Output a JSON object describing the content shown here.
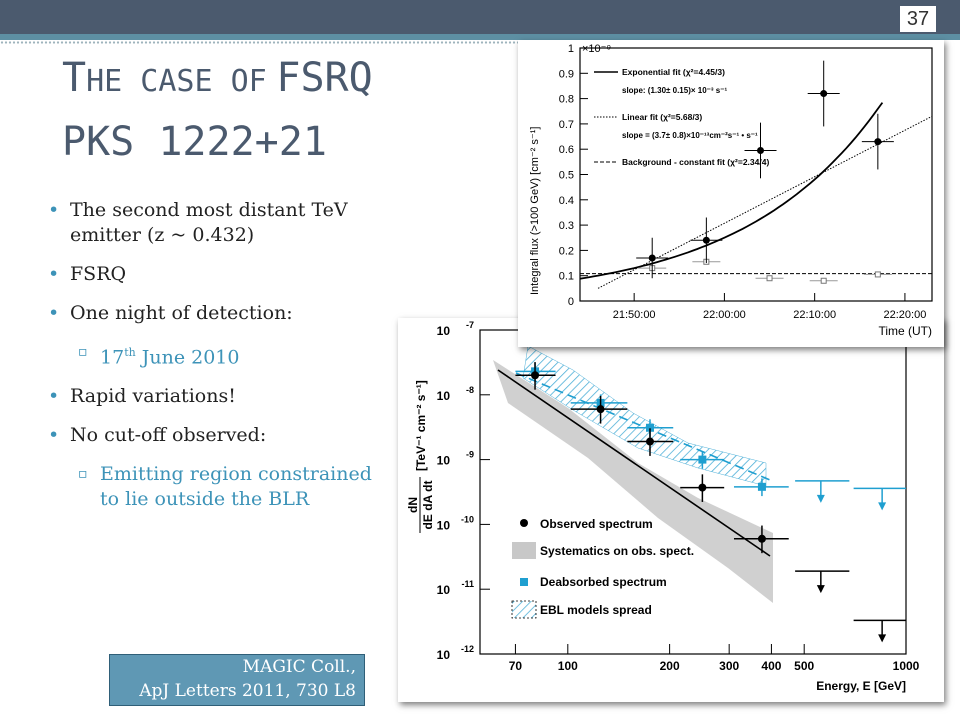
{
  "slide": {
    "page_number": "37",
    "title_line1_cap1": "T",
    "title_line1_rest1": "HE CASE OF",
    "title_line1_rest2": "FSRQ",
    "title_line2": "PKS 1222+21",
    "bullet1": "The second most distant TeV emitter (z ~ 0.432)",
    "bullet2": "FSRQ",
    "bullet3": "One night of detection:",
    "sub1_prefix": "17",
    "sub1_sup": "th",
    "sub1_rest": " June 2010",
    "bullet4": "Rapid variations!",
    "bullet5": "No cut-off observed:",
    "sub2": "Emitting region constrained to lie outside the BLR",
    "ref_line1": "MAGIC Coll.,",
    "ref_line2": "ApJ Letters 2011, 730 L8"
  },
  "colors": {
    "header": "#4b5a6e",
    "accent": "#3d93b8",
    "deabsorbed": "#1f9fd0",
    "band": "#c8c8c8"
  },
  "chart_data": [
    {
      "type": "scatter",
      "xlabel": "Time (UT)",
      "ylabel": "Integral flux (>100 GeV) [cm⁻² s⁻¹]",
      "y_multiplier": "×10⁻⁹",
      "x_ticks": [
        "21:50:00",
        "22:00:00",
        "22:10:00",
        "22:20:00"
      ],
      "y_ticks": [
        "0",
        "0.1",
        "0.2",
        "0.3",
        "0.4",
        "0.5",
        "0.6",
        "0.7",
        "0.8",
        "0.9",
        "1"
      ],
      "ylim": [
        0,
        1.0
      ],
      "legend": [
        {
          "label": "Exponential fit (χ²=4.45/3)",
          "style": "solid"
        },
        {
          "label": "slope: (1.30± 0.15)× 10⁻³ s⁻¹",
          "style": "none"
        },
        {
          "label": "Linear fit (χ²=5.68/3)",
          "style": "dotted"
        },
        {
          "label": "slope = (3.7± 0.8)×10⁻¹³cm⁻²s⁻¹ • s⁻¹",
          "style": "none"
        },
        {
          "label": "Background - constant fit (χ²=2.34/4)",
          "style": "dashed"
        }
      ],
      "series": [
        {
          "points": [
            {
              "x": "21:52",
              "y": 0.17,
              "yerr": 0.08
            },
            {
              "x": "21:58",
              "y": 0.24,
              "yerr": 0.09
            },
            {
              "x": "22:04",
              "y": 0.595,
              "yerr": 0.11
            },
            {
              "x": "22:11",
              "y": 0.82,
              "yerr": 0.13
            },
            {
              "x": "22:17",
              "y": 0.63,
              "yerr": 0.11
            }
          ]
        },
        {
          "points": [
            {
              "x": "21:52",
              "y": 0.13
            },
            {
              "x": "21:58",
              "y": 0.155
            },
            {
              "x": "22:05",
              "y": 0.09
            },
            {
              "x": "22:11",
              "y": 0.08
            },
            {
              "x": "22:17",
              "y": 0.105
            }
          ]
        }
      ],
      "background_level": 0.108
    },
    {
      "type": "scatter",
      "log_axes": true,
      "xlabel": "Energy, E [GeV]",
      "ylabel_num": "dN",
      "ylabel_den": "dE dA dt",
      "ylabel_units": "[TeV⁻¹ cm⁻² s⁻¹]",
      "x_ticks": [
        "70",
        "100",
        "200",
        "300",
        "400",
        "500",
        "1000"
      ],
      "y_ticks": [
        {
          "base": "10",
          "exp": "-7"
        },
        {
          "base": "10",
          "exp": "-8"
        },
        {
          "base": "10",
          "exp": "-9"
        },
        {
          "base": "10",
          "exp": "-10"
        },
        {
          "base": "10",
          "exp": "-11"
        },
        {
          "base": "10",
          "exp": "-12"
        }
      ],
      "legend": [
        "Observed spectrum",
        "Systematics on obs. spect.",
        "Deabsorbed spectrum",
        "EBL models spread"
      ],
      "observed": [
        {
          "e": 80,
          "f": 2e-08
        },
        {
          "e": 125,
          "f": 6e-09
        },
        {
          "e": 175,
          "f": 1.9e-09
        },
        {
          "e": 250,
          "f": 3.7e-10
        },
        {
          "e": 375,
          "f": 6e-11
        }
      ],
      "deabsorbed": [
        {
          "e": 80,
          "f": 2.3e-08
        },
        {
          "e": 125,
          "f": 7.5e-09
        },
        {
          "e": 175,
          "f": 3.1e-09
        },
        {
          "e": 250,
          "f": 1e-09
        },
        {
          "e": 375,
          "f": 3.8e-10
        }
      ],
      "observed_upper_limits": [
        {
          "e": 560,
          "f": 1.9e-11
        },
        {
          "e": 850,
          "f": 3.3e-12
        }
      ],
      "deabsorbed_upper_limits": [
        {
          "e": 560,
          "f": 4.7e-10
        },
        {
          "e": 850,
          "f": 3.6e-10
        }
      ]
    }
  ]
}
